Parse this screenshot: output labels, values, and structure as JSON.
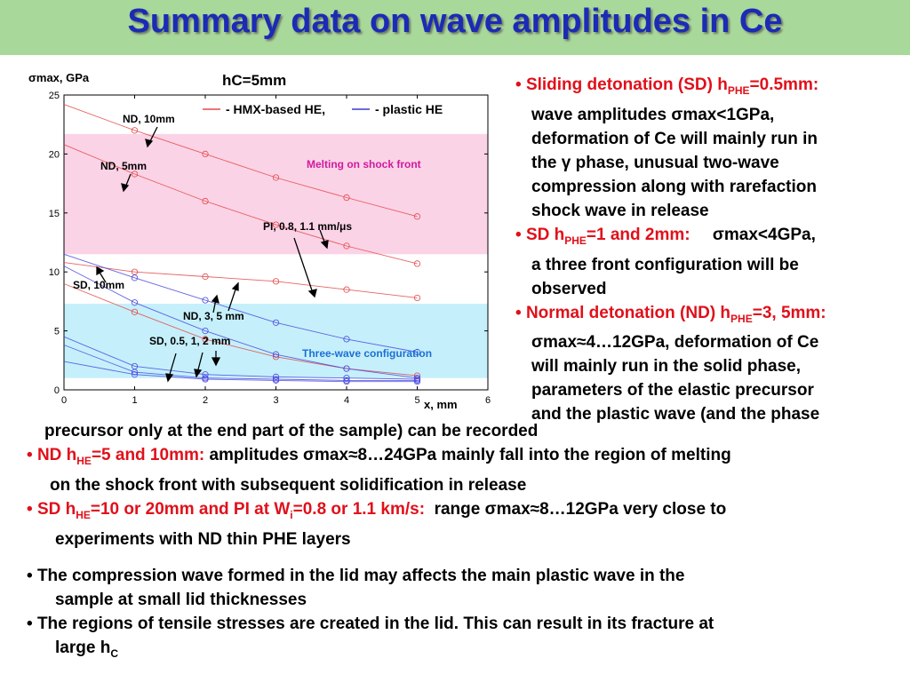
{
  "title": "Summary data on wave amplitudes in Ce",
  "chart_data": {
    "type": "line",
    "ylabel": "σmax, GPa",
    "xlabel": "x, mm",
    "subtitle": "hC=5mm",
    "xlim": [
      0,
      6
    ],
    "ylim": [
      0,
      25
    ],
    "x_ticks": [
      "0",
      "1",
      "2",
      "3",
      "4",
      "5",
      "6"
    ],
    "y_ticks": [
      "0",
      "5",
      "10",
      "15",
      "20",
      "25"
    ],
    "regions": [
      {
        "label": "Melting on shock front",
        "y_range": [
          11.5,
          21.7
        ],
        "color": "#fbd3e6"
      },
      {
        "label": "Three-wave configuration",
        "y_range": [
          1.0,
          7.3
        ],
        "color": "#c5f0fb"
      }
    ],
    "legend": {
      "red_label": "- HMX-based HE,",
      "blue_label": "- plastic HE",
      "placement": "top-center"
    },
    "annotations": [
      "ND, 10mm",
      "ND, 5mm",
      "PI, 0.8, 1.1 mm/μs",
      "SD, 10mm",
      "ND, 3, 5 mm",
      "SD, 0.5, 1, 2 mm"
    ],
    "series": [
      {
        "color": "#e34848",
        "x": [
          0,
          1,
          2,
          3,
          4,
          5
        ],
        "values": [
          24.2,
          22.0,
          20.0,
          18.0,
          16.3,
          14.7
        ]
      },
      {
        "color": "#e34848",
        "x": [
          0,
          1,
          2,
          3,
          4,
          5
        ],
        "values": [
          20.8,
          18.3,
          16.0,
          14.0,
          12.2,
          10.7
        ]
      },
      {
        "color": "#e34848",
        "x": [
          0,
          1,
          2,
          3,
          4,
          5
        ],
        "values": [
          10.8,
          10.0,
          9.6,
          9.2,
          8.5,
          7.8
        ]
      },
      {
        "color": "#e34848",
        "x": [
          0,
          1,
          2,
          3,
          4,
          5
        ],
        "values": [
          9.0,
          6.6,
          4.3,
          2.8,
          1.8,
          1.2
        ]
      },
      {
        "color": "#4a4ae0",
        "x": [
          0,
          1,
          2,
          3,
          4,
          5
        ],
        "values": [
          11.5,
          9.5,
          7.6,
          5.7,
          4.3,
          3.2
        ]
      },
      {
        "color": "#4a4ae0",
        "x": [
          0,
          1,
          2,
          3,
          4,
          5
        ],
        "values": [
          10.5,
          7.4,
          5.0,
          3.0,
          1.8,
          1.0
        ]
      },
      {
        "color": "#4a4ae0",
        "x": [
          0,
          1,
          2,
          3,
          4,
          5
        ],
        "values": [
          4.5,
          2.0,
          1.3,
          1.1,
          1.0,
          0.9
        ]
      },
      {
        "color": "#4a4ae0",
        "x": [
          0,
          1,
          2,
          3,
          4,
          5
        ],
        "values": [
          3.8,
          1.5,
          1.0,
          0.9,
          0.8,
          0.8
        ]
      },
      {
        "color": "#4a4ae0",
        "x": [
          0,
          1,
          2,
          3,
          4,
          5
        ],
        "values": [
          2.4,
          1.3,
          0.9,
          0.8,
          0.7,
          0.7
        ]
      }
    ]
  },
  "right_panel": {
    "items": [
      {
        "lead_pre": "Sliding detonation (SD) h",
        "lead_sub": "PHE",
        "lead_post": "=0.5mm:",
        "body_lines": [
          "wave amplitudes σmax<1GPa,",
          "deformation of Ce will mainly run in",
          "the γ phase, unusual two-wave",
          "compression along with rarefaction",
          "shock wave in release"
        ]
      },
      {
        "lead_pre": "SD h",
        "lead_sub": "PHE",
        "lead_post": "=1 and 2mm:",
        "lead_tail": "σmax<4GPa,",
        "body_lines": [
          "a three front configuration will be",
          "observed"
        ]
      },
      {
        "lead_pre": "Normal detonation (ND) h",
        "lead_sub": "PHE",
        "lead_post": "=3, 5mm:",
        "body_lines": [
          "σmax≈4…12GPa, deformation of Ce",
          "will mainly run in the solid phase,",
          "parameters of the elastic precursor",
          "and  the plastic wave (and the phase"
        ]
      }
    ]
  },
  "bottom": {
    "line1": "precursor only at the end part of the sample) can be recorded",
    "nd_lead_pre": "ND h",
    "nd_lead_sub": "HE",
    "nd_lead_post": "=5 and 10mm:",
    "nd_body": "amplitudes σmax≈8…24GPa mainly fall into the region of melting",
    "nd_body2": "on the shock front with subsequent solidification in release",
    "sd_lead_pre": "SD h",
    "sd_lead_sub": "HE",
    "sd_lead_mid": "=10 or 20mm and PI at W",
    "sd_lead_sub2": "i",
    "sd_lead_post": "=0.8 or 1.1 km/s:",
    "sd_body": "range σmax≈8…12GPa very close to",
    "sd_body2": "experiments with ND thin PHE layers",
    "b1": "The compression wave formed in the lid may affects the main plastic wave in the",
    "b1_2": "sample at small lid thicknesses",
    "b2": "The regions of tensile stresses are created in the lid. This can result in its fracture at",
    "b2_2_pre": "large h",
    "b2_2_sub": "C"
  }
}
